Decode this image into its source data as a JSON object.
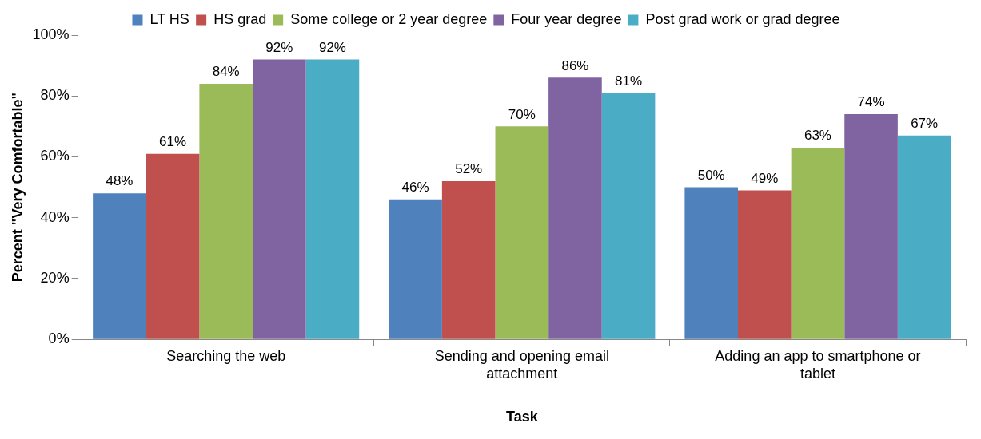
{
  "chart_data": {
    "type": "bar",
    "xlabel": "Task",
    "ylabel": "Percent \"Very Comfortable\"",
    "categories": [
      "Searching the web",
      "Sending and opening email attachment",
      "Adding an app to smartphone or tablet"
    ],
    "series": [
      {
        "name": "LT HS",
        "color": "#4f81bd",
        "values": [
          48,
          46,
          50
        ],
        "value_labels": [
          "48%",
          "46%",
          "50%"
        ]
      },
      {
        "name": "HS grad",
        "color": "#c0504d",
        "values": [
          61,
          52,
          49
        ],
        "value_labels": [
          "61%",
          "52%",
          "49%"
        ]
      },
      {
        "name": "Some college or 2 year degree",
        "color": "#9bbb59",
        "values": [
          84,
          70,
          63
        ],
        "value_labels": [
          "84%",
          "70%",
          "63%"
        ]
      },
      {
        "name": "Four year degree",
        "color": "#8064a2",
        "values": [
          92,
          86,
          74
        ],
        "value_labels": [
          "92%",
          "86%",
          "74%"
        ]
      },
      {
        "name": "Post grad work or grad degree",
        "color": "#4bacc6",
        "values": [
          92,
          81,
          67
        ],
        "value_labels": [
          "92%",
          "81%",
          "67%"
        ]
      }
    ],
    "ylim": [
      0,
      100
    ],
    "yticks": [
      {
        "value": 0,
        "label": "0%"
      },
      {
        "value": 20,
        "label": "20%"
      },
      {
        "value": 40,
        "label": "40%"
      },
      {
        "value": 60,
        "label": "60%"
      },
      {
        "value": 80,
        "label": "80%"
      },
      {
        "value": 100,
        "label": "100%"
      }
    ],
    "grid": false,
    "legend": "top"
  }
}
